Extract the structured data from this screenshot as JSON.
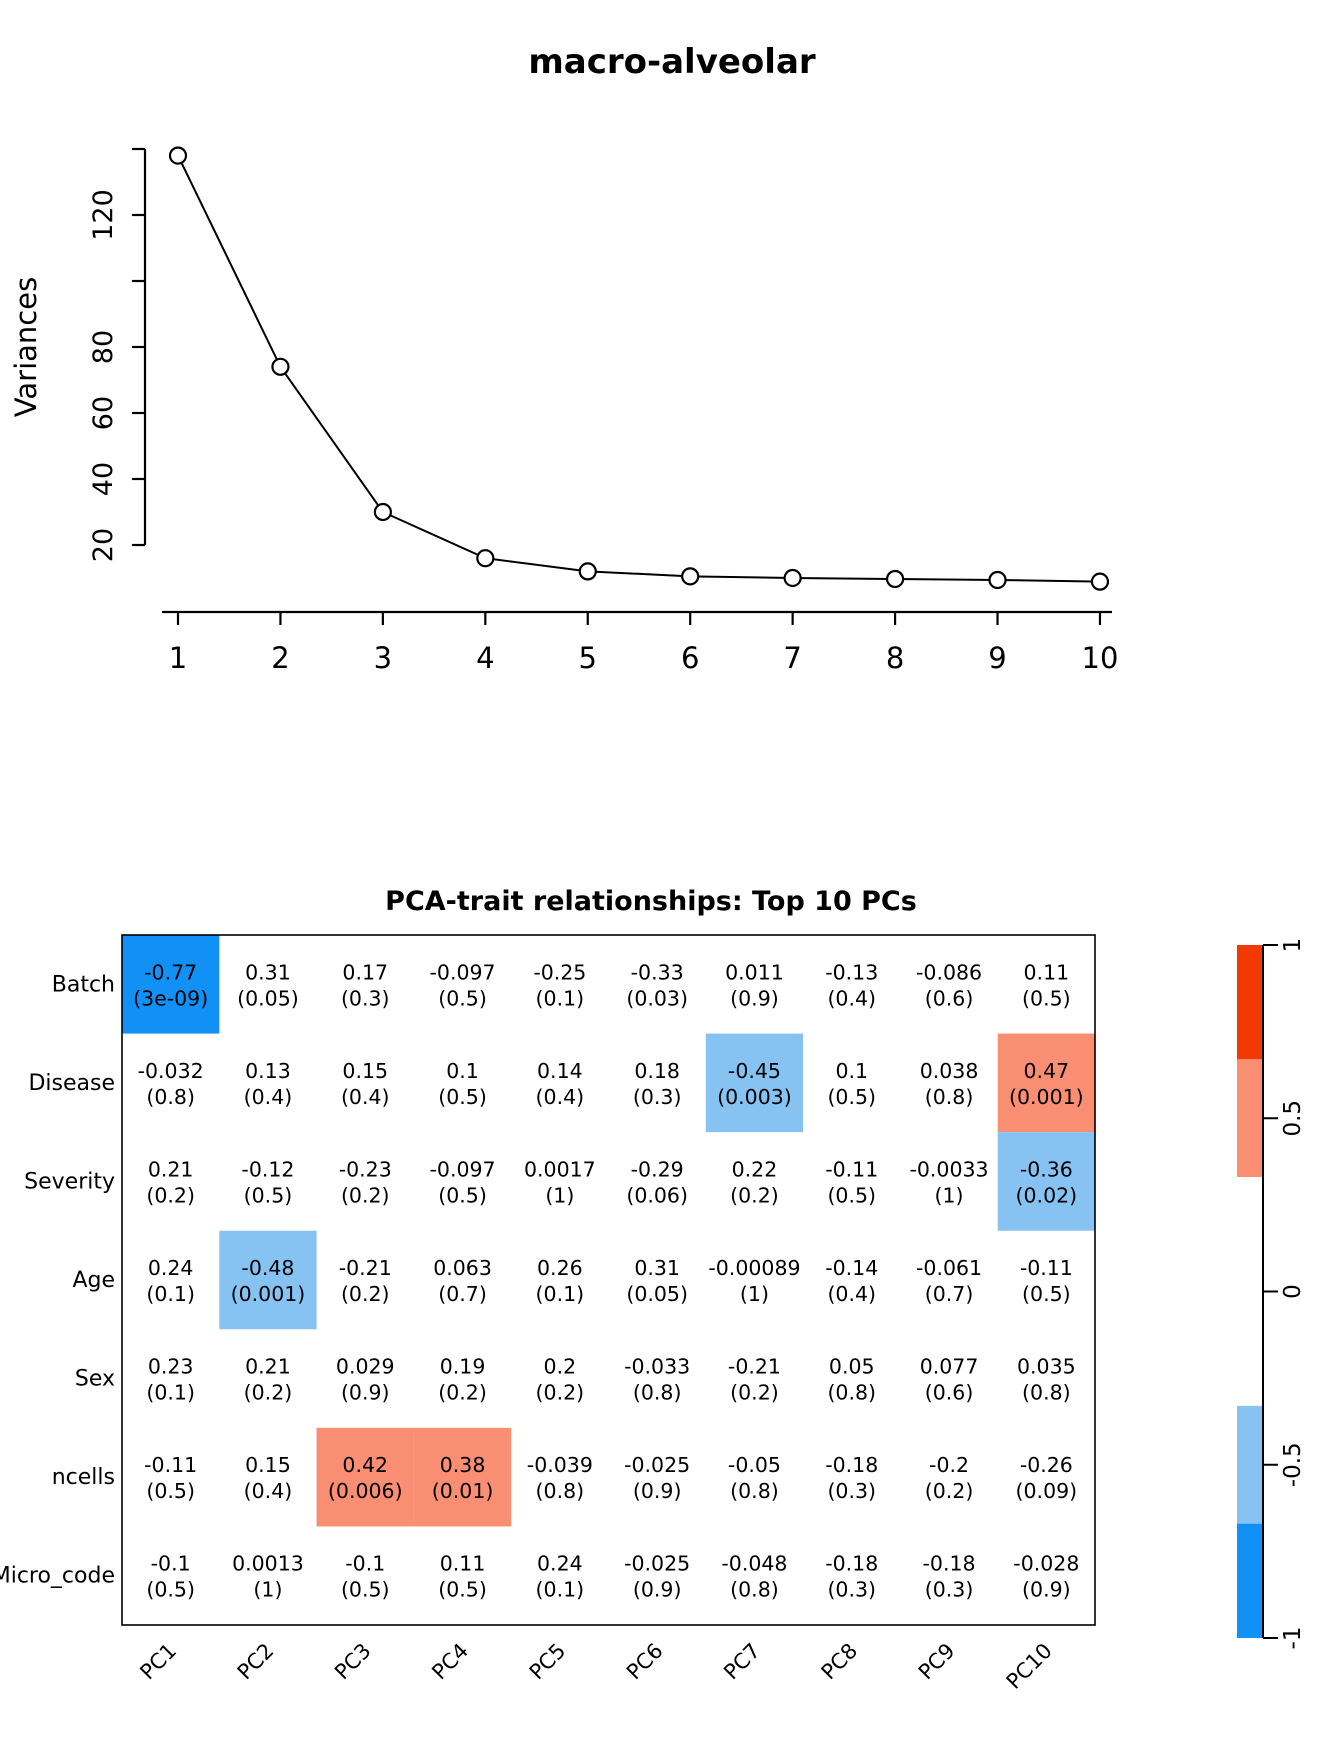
{
  "page": {
    "background": "#ffffff",
    "text_color": "#000000"
  },
  "chart_data": [
    {
      "type": "line",
      "title": "macro-alveolar",
      "xlabel": "",
      "ylabel": "Variances",
      "x": [
        1,
        2,
        3,
        4,
        5,
        6,
        7,
        8,
        9,
        10
      ],
      "values": [
        138,
        74,
        30,
        16,
        12,
        10.5,
        10,
        9.7,
        9.4,
        8.9
      ],
      "marker": "open-circle",
      "xtick_labels": [
        "1",
        "2",
        "3",
        "4",
        "5",
        "6",
        "7",
        "8",
        "9",
        "10"
      ],
      "yticks": [
        20,
        40,
        60,
        80,
        100,
        120,
        140
      ],
      "ytick_labels_shown": [
        "20",
        "40",
        "60",
        "80",
        "120"
      ],
      "ylim": [
        4,
        143
      ],
      "grid": "off",
      "line_color": "#000000"
    },
    {
      "type": "heatmap",
      "title": "PCA-trait relationships: Top 10 PCs",
      "columns": [
        "PC1",
        "PC2",
        "PC3",
        "PC4",
        "PC5",
        "PC6",
        "PC7",
        "PC8",
        "PC9",
        "PC10"
      ],
      "palette": {
        "red": "#F23A00",
        "salmon": "#F98E72",
        "white": "#FFFFFF",
        "light_blue": "#86C3F3",
        "deep_blue": "#1190F6"
      },
      "rows": [
        {
          "label": "Batch",
          "cells": [
            {
              "r": "-0.77",
              "p": "(3e-09)",
              "bg": "deep_blue"
            },
            {
              "r": "0.31",
              "p": "(0.05)",
              "bg": "white"
            },
            {
              "r": "0.17",
              "p": "(0.3)",
              "bg": "white"
            },
            {
              "r": "-0.097",
              "p": "(0.5)",
              "bg": "white"
            },
            {
              "r": "-0.25",
              "p": "(0.1)",
              "bg": "white"
            },
            {
              "r": "-0.33",
              "p": "(0.03)",
              "bg": "white"
            },
            {
              "r": "0.011",
              "p": "(0.9)",
              "bg": "white"
            },
            {
              "r": "-0.13",
              "p": "(0.4)",
              "bg": "white"
            },
            {
              "r": "-0.086",
              "p": "(0.6)",
              "bg": "white"
            },
            {
              "r": "0.11",
              "p": "(0.5)",
              "bg": "white"
            }
          ]
        },
        {
          "label": "Disease",
          "cells": [
            {
              "r": "-0.032",
              "p": "(0.8)",
              "bg": "white"
            },
            {
              "r": "0.13",
              "p": "(0.4)",
              "bg": "white"
            },
            {
              "r": "0.15",
              "p": "(0.4)",
              "bg": "white"
            },
            {
              "r": "0.1",
              "p": "(0.5)",
              "bg": "white"
            },
            {
              "r": "0.14",
              "p": "(0.4)",
              "bg": "white"
            },
            {
              "r": "0.18",
              "p": "(0.3)",
              "bg": "white"
            },
            {
              "r": "-0.45",
              "p": "(0.003)",
              "bg": "light_blue"
            },
            {
              "r": "0.1",
              "p": "(0.5)",
              "bg": "white"
            },
            {
              "r": "0.038",
              "p": "(0.8)",
              "bg": "white"
            },
            {
              "r": "0.47",
              "p": "(0.001)",
              "bg": "salmon"
            }
          ]
        },
        {
          "label": "Severity",
          "cells": [
            {
              "r": "0.21",
              "p": "(0.2)",
              "bg": "white"
            },
            {
              "r": "-0.12",
              "p": "(0.5)",
              "bg": "white"
            },
            {
              "r": "-0.23",
              "p": "(0.2)",
              "bg": "white"
            },
            {
              "r": "-0.097",
              "p": "(0.5)",
              "bg": "white"
            },
            {
              "r": "0.0017",
              "p": "(1)",
              "bg": "white"
            },
            {
              "r": "-0.29",
              "p": "(0.06)",
              "bg": "white"
            },
            {
              "r": "0.22",
              "p": "(0.2)",
              "bg": "white"
            },
            {
              "r": "-0.11",
              "p": "(0.5)",
              "bg": "white"
            },
            {
              "r": "-0.0033",
              "p": "(1)",
              "bg": "white"
            },
            {
              "r": "-0.36",
              "p": "(0.02)",
              "bg": "light_blue"
            }
          ]
        },
        {
          "label": "Age",
          "cells": [
            {
              "r": "0.24",
              "p": "(0.1)",
              "bg": "white"
            },
            {
              "r": "-0.48",
              "p": "(0.001)",
              "bg": "light_blue"
            },
            {
              "r": "-0.21",
              "p": "(0.2)",
              "bg": "white"
            },
            {
              "r": "0.063",
              "p": "(0.7)",
              "bg": "white"
            },
            {
              "r": "0.26",
              "p": "(0.1)",
              "bg": "white"
            },
            {
              "r": "0.31",
              "p": "(0.05)",
              "bg": "white"
            },
            {
              "r": "-0.00089",
              "p": "(1)",
              "bg": "white"
            },
            {
              "r": "-0.14",
              "p": "(0.4)",
              "bg": "white"
            },
            {
              "r": "-0.061",
              "p": "(0.7)",
              "bg": "white"
            },
            {
              "r": "-0.11",
              "p": "(0.5)",
              "bg": "white"
            }
          ]
        },
        {
          "label": "Sex",
          "cells": [
            {
              "r": "0.23",
              "p": "(0.1)",
              "bg": "white"
            },
            {
              "r": "0.21",
              "p": "(0.2)",
              "bg": "white"
            },
            {
              "r": "0.029",
              "p": "(0.9)",
              "bg": "white"
            },
            {
              "r": "0.19",
              "p": "(0.2)",
              "bg": "white"
            },
            {
              "r": "0.2",
              "p": "(0.2)",
              "bg": "white"
            },
            {
              "r": "-0.033",
              "p": "(0.8)",
              "bg": "white"
            },
            {
              "r": "-0.21",
              "p": "(0.2)",
              "bg": "white"
            },
            {
              "r": "0.05",
              "p": "(0.8)",
              "bg": "white"
            },
            {
              "r": "0.077",
              "p": "(0.6)",
              "bg": "white"
            },
            {
              "r": "0.035",
              "p": "(0.8)",
              "bg": "white"
            }
          ]
        },
        {
          "label": "ncells",
          "cells": [
            {
              "r": "-0.11",
              "p": "(0.5)",
              "bg": "white"
            },
            {
              "r": "0.15",
              "p": "(0.4)",
              "bg": "white"
            },
            {
              "r": "0.42",
              "p": "(0.006)",
              "bg": "salmon"
            },
            {
              "r": "0.38",
              "p": "(0.01)",
              "bg": "salmon"
            },
            {
              "r": "-0.039",
              "p": "(0.8)",
              "bg": "white"
            },
            {
              "r": "-0.025",
              "p": "(0.9)",
              "bg": "white"
            },
            {
              "r": "-0.05",
              "p": "(0.8)",
              "bg": "white"
            },
            {
              "r": "-0.18",
              "p": "(0.3)",
              "bg": "white"
            },
            {
              "r": "-0.2",
              "p": "(0.2)",
              "bg": "white"
            },
            {
              "r": "-0.26",
              "p": "(0.09)",
              "bg": "white"
            }
          ]
        },
        {
          "label": "Micro_code",
          "cells": [
            {
              "r": "-0.1",
              "p": "(0.5)",
              "bg": "white"
            },
            {
              "r": "0.0013",
              "p": "(1)",
              "bg": "white"
            },
            {
              "r": "-0.1",
              "p": "(0.5)",
              "bg": "white"
            },
            {
              "r": "0.11",
              "p": "(0.5)",
              "bg": "white"
            },
            {
              "r": "0.24",
              "p": "(0.1)",
              "bg": "white"
            },
            {
              "r": "-0.025",
              "p": "(0.9)",
              "bg": "white"
            },
            {
              "r": "-0.048",
              "p": "(0.8)",
              "bg": "white"
            },
            {
              "r": "-0.18",
              "p": "(0.3)",
              "bg": "white"
            },
            {
              "r": "-0.18",
              "p": "(0.3)",
              "bg": "white"
            },
            {
              "r": "-0.028",
              "p": "(0.9)",
              "bg": "white"
            }
          ]
        },
        {
          "label": "",
          "cells": []
        }
      ],
      "colorbar": {
        "tick_labels": [
          "1",
          "0.5",
          "0",
          "-0.5",
          "-1"
        ],
        "tick_values": [
          1,
          0.5,
          0,
          -0.5,
          -1
        ],
        "segments": [
          {
            "from": 1.0,
            "to": 0.67,
            "color": "red"
          },
          {
            "from": 0.67,
            "to": 0.33,
            "color": "salmon"
          },
          {
            "from": 0.33,
            "to": -0.33,
            "color": "white"
          },
          {
            "from": -0.33,
            "to": -0.67,
            "color": "light_blue"
          },
          {
            "from": -0.67,
            "to": -1.0,
            "color": "deep_blue"
          }
        ],
        "range": [
          -1,
          1
        ],
        "position": "right"
      },
      "grid": "off",
      "legend_position": "right"
    }
  ]
}
